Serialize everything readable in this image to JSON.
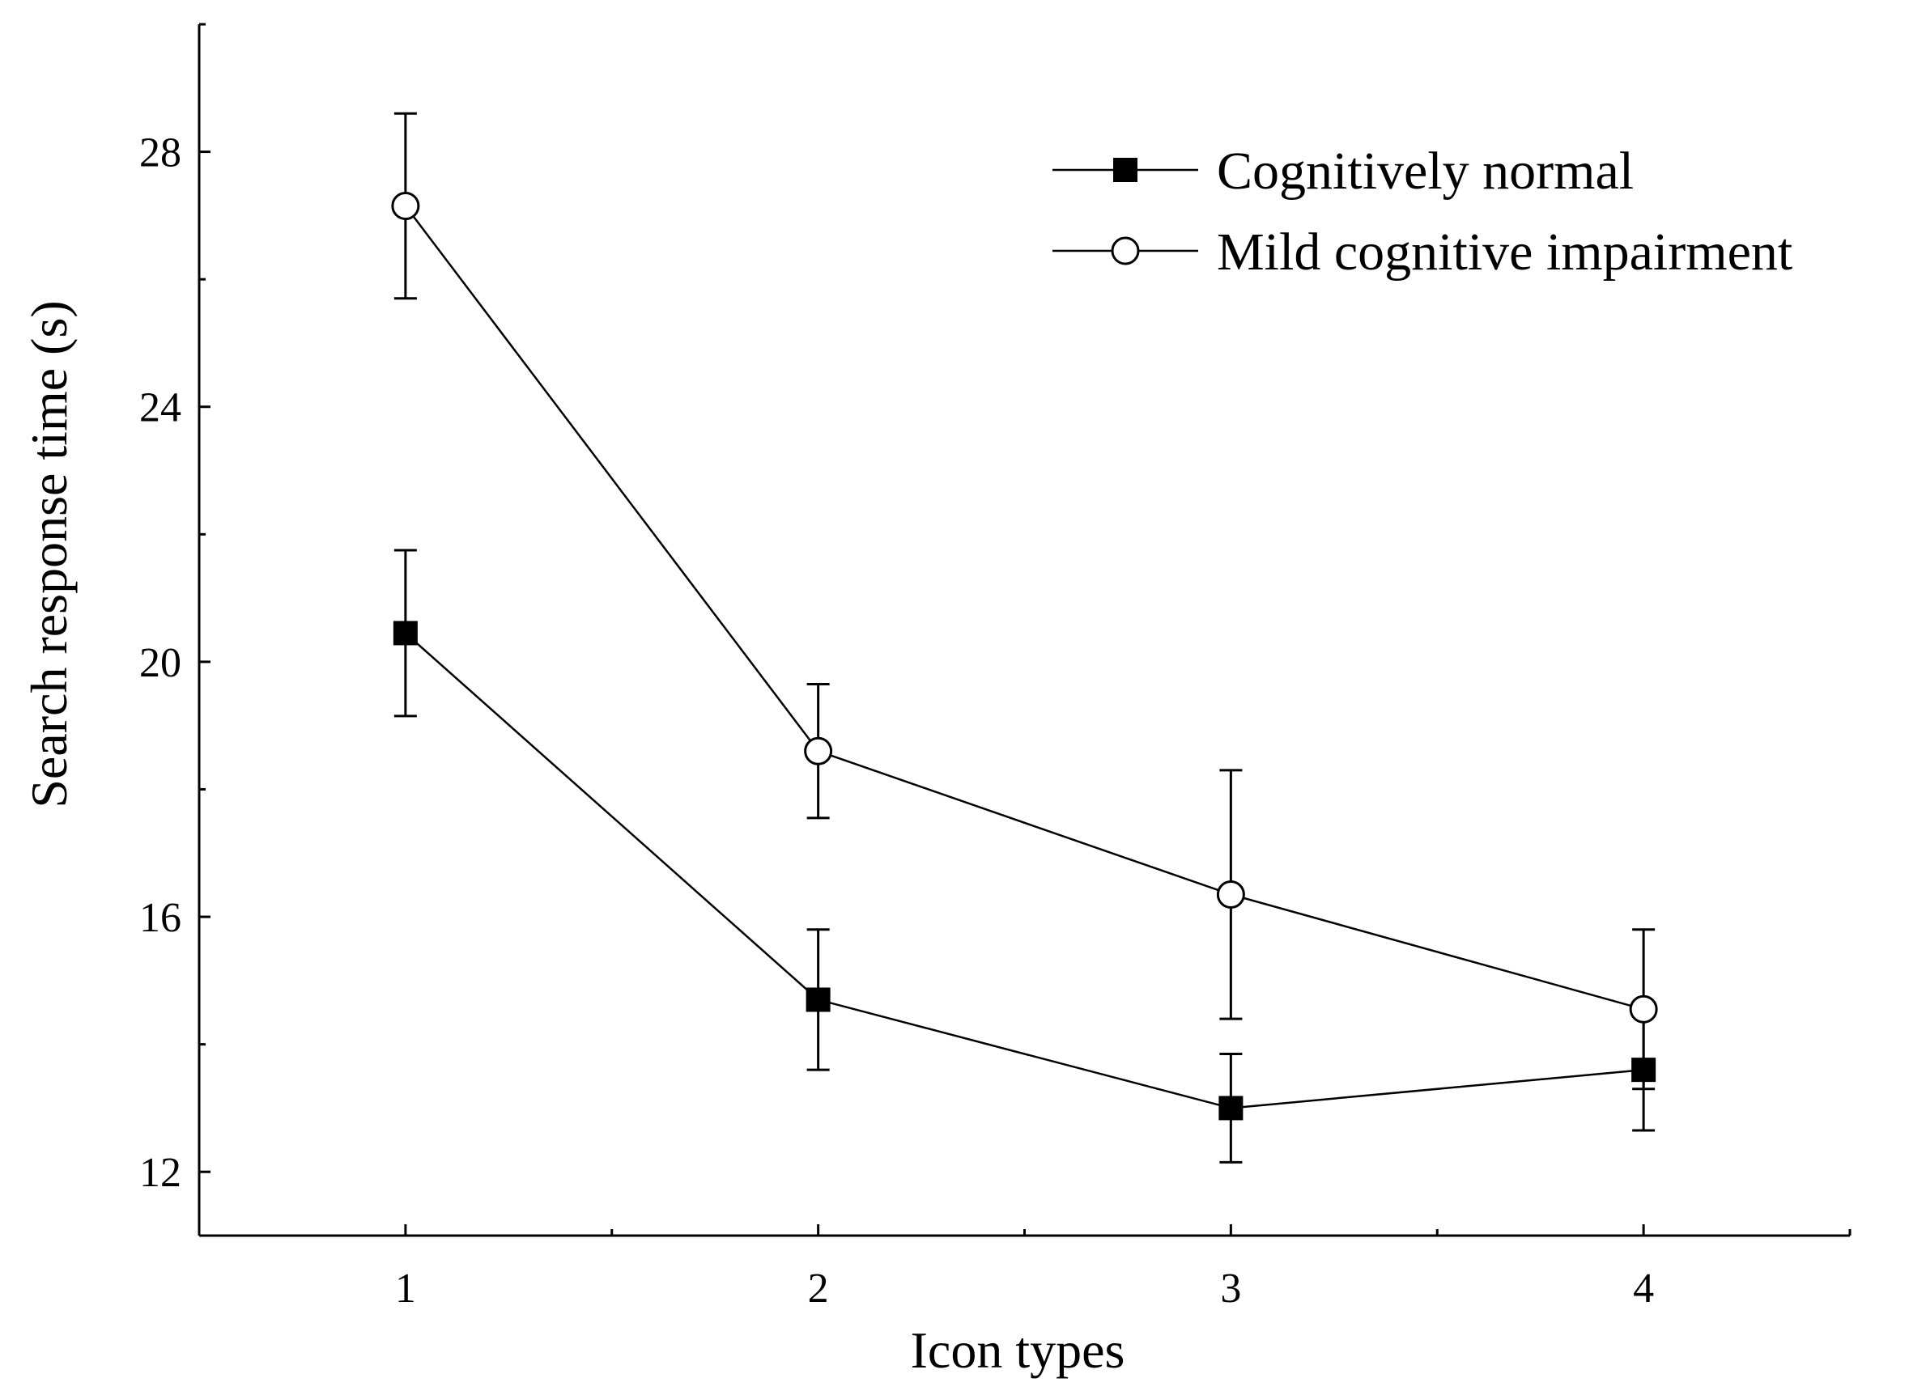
{
  "chart_data": {
    "type": "line",
    "title": "",
    "xlabel": "Icon types",
    "ylabel": "Search response time (s)",
    "categories": [
      "1",
      "2",
      "3",
      "4"
    ],
    "x": [
      1,
      2,
      3,
      4
    ],
    "xlim": [
      0.5,
      4.5
    ],
    "ylim": [
      11,
      30
    ],
    "yticks": [
      12,
      16,
      20,
      24,
      28
    ],
    "grid": false,
    "legend_position": "top-right",
    "error_bars": true,
    "series": [
      {
        "name": "Cognitively normal",
        "marker": "filled-square",
        "color": "#000000",
        "values": [
          20.45,
          14.7,
          13.0,
          13.6
        ],
        "error": [
          1.3,
          1.1,
          0.85,
          0.95
        ]
      },
      {
        "name": "Mild cognitive impairment",
        "marker": "open-circle",
        "color": "#000000",
        "values": [
          27.15,
          18.6,
          16.35,
          14.55
        ],
        "error": [
          1.45,
          1.05,
          1.95,
          1.25
        ]
      }
    ]
  }
}
